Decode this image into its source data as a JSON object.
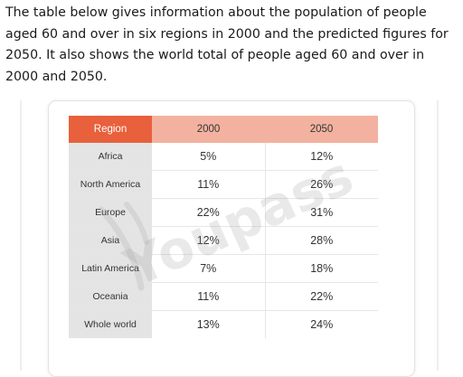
{
  "intro_text": "The table below gives information about the population of people aged 60 and over in six regions in 2000 and the predicted figures for 2050. It also shows the world total of people aged 60 and over in 2000 and 2050.",
  "watermark_text": "Youpass",
  "table": {
    "headers": [
      "Region",
      "2000",
      "2050"
    ],
    "rows": [
      {
        "region": "Africa",
        "y2000": "5%",
        "y2050": "12%"
      },
      {
        "region": "North America",
        "y2000": "11%",
        "y2050": "26%"
      },
      {
        "region": "Europe",
        "y2000": "22%",
        "y2050": "31%"
      },
      {
        "region": "Asia",
        "y2000": "12%",
        "y2050": "28%"
      },
      {
        "region": "Latin America",
        "y2000": "7%",
        "y2050": "18%"
      },
      {
        "region": "Oceania",
        "y2000": "11%",
        "y2050": "22%"
      },
      {
        "region": "Whole world",
        "y2000": "13%",
        "y2050": "24%"
      }
    ]
  },
  "colors": {
    "header_region": "#e8603c",
    "header_years": "#f3b2a0",
    "region_cell": "#e4e4e4"
  },
  "chart_data": {
    "type": "table",
    "columns": [
      "Region",
      "2000",
      "2050"
    ],
    "categories": [
      "Africa",
      "North America",
      "Europe",
      "Asia",
      "Latin America",
      "Oceania",
      "Whole world"
    ],
    "series": [
      {
        "name": "2000",
        "values": [
          5,
          11,
          22,
          12,
          7,
          11,
          13
        ]
      },
      {
        "name": "2050",
        "values": [
          12,
          26,
          31,
          28,
          18,
          22,
          24
        ]
      }
    ]
  }
}
